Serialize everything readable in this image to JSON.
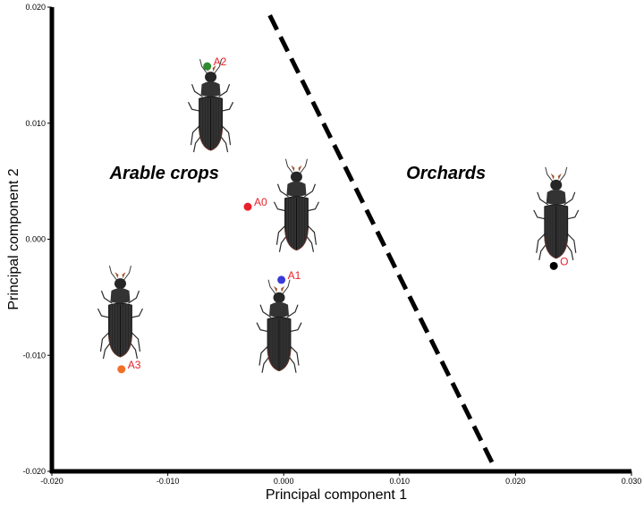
{
  "chart_data": {
    "type": "scatter",
    "xlabel": "Principal component 1",
    "ylabel": "Principal component 2",
    "xlim": [
      -0.02,
      0.03
    ],
    "ylim": [
      -0.02,
      0.02
    ],
    "x_ticks": [
      "-0.020",
      "-0.010",
      "0.000",
      "0.010",
      "0.020",
      "0.030"
    ],
    "y_ticks": [
      "0.020",
      "0.010",
      "0.000",
      "-0.010",
      "-0.020"
    ],
    "x_tick_values": [
      -0.02,
      -0.01,
      0.0,
      0.01,
      0.02,
      0.03
    ],
    "y_tick_values": [
      0.02,
      0.01,
      0.0,
      -0.01,
      -0.02
    ],
    "points": [
      {
        "label": "A2",
        "x": -0.0066,
        "y": 0.0149,
        "color": "#2e8b2e"
      },
      {
        "label": "A0",
        "x": -0.0031,
        "y": 0.0028,
        "color": "#e8202a"
      },
      {
        "label": "A1",
        "x": -0.0002,
        "y": -0.0035,
        "color": "#3a3ad8"
      },
      {
        "label": "A3",
        "x": -0.014,
        "y": -0.0112,
        "color": "#f07028"
      },
      {
        "label": "O",
        "x": 0.0233,
        "y": -0.0023,
        "color": "#000000"
      }
    ],
    "separator_line": {
      "x": [
        -0.0012,
        0.0182
      ],
      "y": [
        0.0193,
        -0.0197
      ],
      "style": "dashed",
      "color": "#000000"
    },
    "region_labels": [
      {
        "text": "Arable crops",
        "x": -0.0103,
        "y": 0.0052
      },
      {
        "text": "Orchards",
        "x": 0.014,
        "y": 0.0052
      }
    ],
    "beetle_images_at": [
      {
        "x": -0.0063,
        "y": 0.0112
      },
      {
        "x": 0.0011,
        "y": 0.0026
      },
      {
        "x": 0.0235,
        "y": 0.0019
      },
      {
        "x": -0.0004,
        "y": -0.0078
      },
      {
        "x": -0.0141,
        "y": -0.0066
      }
    ],
    "grid": false,
    "legend": "none"
  }
}
